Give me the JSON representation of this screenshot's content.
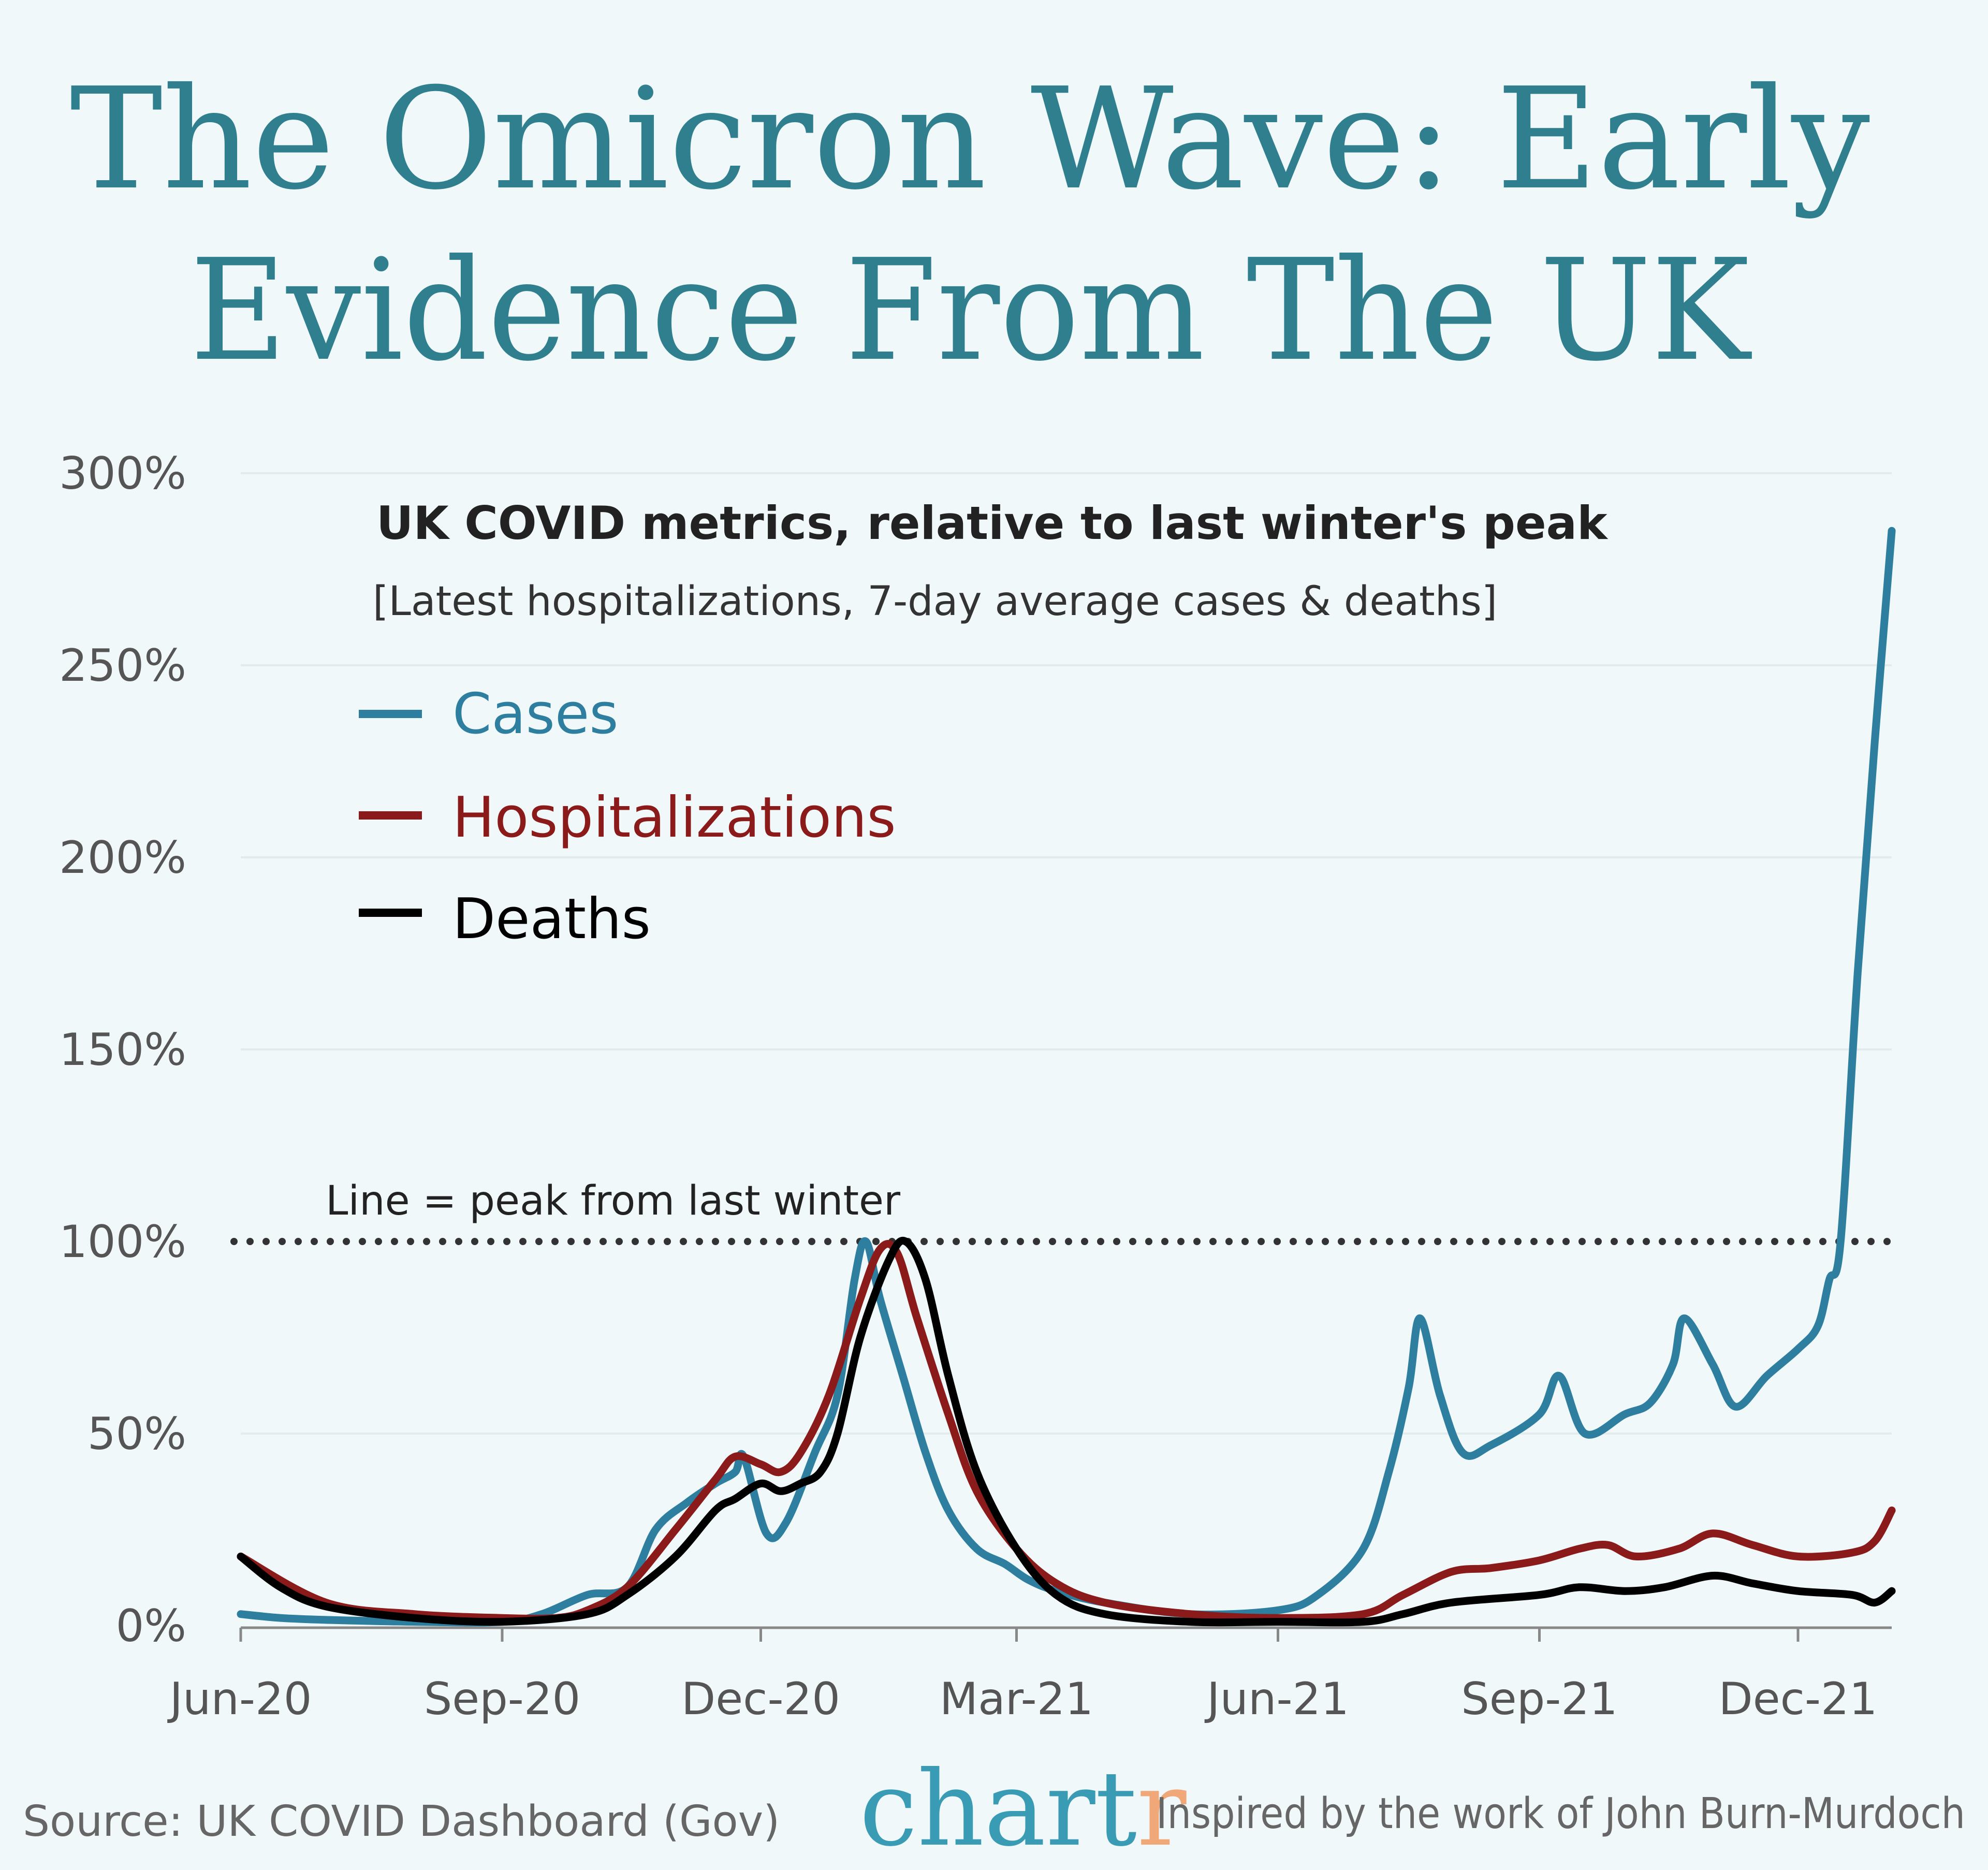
{
  "title_line1": "The Omicron Wave: Early",
  "title_line2": "Evidence From The UK",
  "footer": {
    "source": "Source: UK COVID Dashboard (Gov)",
    "logo": "chartr",
    "credit": "Inspired by the work of John Burn-Murdoch"
  },
  "colors": {
    "background": "#f0f8fa",
    "title": "#2f7f8e",
    "cases": "#2e7ea0",
    "hospitalizations": "#8b1a1a",
    "deaths": "#000000",
    "logo_main": "#3a9bb5",
    "logo_accent": "#f0a878"
  },
  "chart_data": {
    "type": "line",
    "title": "UK COVID metrics, relative to last winter's peak",
    "subtitle": "[Latest hospitalizations, 7-day average cases & deaths]",
    "annotation": "Line = peak from last winter",
    "reference_line": {
      "y": 100,
      "style": "dotted"
    },
    "ylim": [
      0,
      300
    ],
    "xlim": [
      "2020-06-01",
      "2022-01-03"
    ],
    "yticks": [
      "0%",
      "50%",
      "100%",
      "150%",
      "200%",
      "250%",
      "300%"
    ],
    "ytick_values": [
      0,
      50,
      100,
      150,
      200,
      250,
      300
    ],
    "xticks": [
      "Jun-20",
      "Sep-20",
      "Dec-20",
      "Mar-21",
      "Jun-21",
      "Sep-21",
      "Dec-21"
    ],
    "xtick_dates": [
      "2020-06-01",
      "2020-09-01",
      "2020-12-01",
      "2021-03-01",
      "2021-06-01",
      "2021-09-01",
      "2021-12-01"
    ],
    "grid": true,
    "legend_placement": "top-left",
    "series": [
      {
        "name": "Cases",
        "color": "#2e7ea0",
        "points": [
          [
            "2020-06-01",
            3
          ],
          [
            "2020-06-15",
            2
          ],
          [
            "2020-07-01",
            1.5
          ],
          [
            "2020-08-01",
            1
          ],
          [
            "2020-09-01",
            1
          ],
          [
            "2020-09-15",
            3
          ],
          [
            "2020-10-01",
            8
          ],
          [
            "2020-10-15",
            10
          ],
          [
            "2020-10-25",
            25
          ],
          [
            "2020-11-05",
            32
          ],
          [
            "2020-11-15",
            37
          ],
          [
            "2020-11-22",
            40
          ],
          [
            "2020-11-25",
            44
          ],
          [
            "2020-12-03",
            24
          ],
          [
            "2020-12-10",
            27
          ],
          [
            "2020-12-20",
            45
          ],
          [
            "2020-12-28",
            60
          ],
          [
            "2021-01-03",
            90
          ],
          [
            "2021-01-07",
            100
          ],
          [
            "2021-01-12",
            85
          ],
          [
            "2021-01-20",
            65
          ],
          [
            "2021-01-28",
            45
          ],
          [
            "2021-02-05",
            30
          ],
          [
            "2021-02-15",
            20
          ],
          [
            "2021-02-25",
            16
          ],
          [
            "2021-03-05",
            12
          ],
          [
            "2021-03-15",
            9
          ],
          [
            "2021-04-01",
            6
          ],
          [
            "2021-05-01",
            3
          ],
          [
            "2021-06-01",
            4
          ],
          [
            "2021-06-15",
            8
          ],
          [
            "2021-07-01",
            20
          ],
          [
            "2021-07-10",
            40
          ],
          [
            "2021-07-17",
            62
          ],
          [
            "2021-07-21",
            80
          ],
          [
            "2021-07-28",
            60
          ],
          [
            "2021-08-05",
            45
          ],
          [
            "2021-08-15",
            47
          ],
          [
            "2021-09-01",
            55
          ],
          [
            "2021-09-08",
            65
          ],
          [
            "2021-09-17",
            50
          ],
          [
            "2021-10-01",
            55
          ],
          [
            "2021-10-10",
            58
          ],
          [
            "2021-10-18",
            68
          ],
          [
            "2021-10-22",
            80
          ],
          [
            "2021-11-01",
            68
          ],
          [
            "2021-11-09",
            57
          ],
          [
            "2021-11-20",
            65
          ],
          [
            "2021-12-01",
            72
          ],
          [
            "2021-12-08",
            78
          ],
          [
            "2021-12-12",
            90
          ],
          [
            "2021-12-16",
            100
          ],
          [
            "2021-12-22",
            170
          ],
          [
            "2021-12-28",
            230
          ],
          [
            "2022-01-03",
            285
          ]
        ]
      },
      {
        "name": "Hospitalizations",
        "color": "#8b1a1a",
        "points": [
          [
            "2020-06-01",
            18
          ],
          [
            "2020-07-01",
            6
          ],
          [
            "2020-08-01",
            3
          ],
          [
            "2020-09-01",
            2
          ],
          [
            "2020-09-20",
            2
          ],
          [
            "2020-10-01",
            4
          ],
          [
            "2020-10-15",
            10
          ],
          [
            "2020-11-01",
            25
          ],
          [
            "2020-11-15",
            38
          ],
          [
            "2020-11-22",
            44
          ],
          [
            "2020-12-01",
            42
          ],
          [
            "2020-12-08",
            40
          ],
          [
            "2020-12-15",
            45
          ],
          [
            "2020-12-25",
            60
          ],
          [
            "2021-01-05",
            85
          ],
          [
            "2021-01-12",
            98
          ],
          [
            "2021-01-18",
            97
          ],
          [
            "2021-01-25",
            80
          ],
          [
            "2021-02-05",
            55
          ],
          [
            "2021-02-15",
            35
          ],
          [
            "2021-03-01",
            20
          ],
          [
            "2021-03-15",
            11
          ],
          [
            "2021-04-01",
            6
          ],
          [
            "2021-05-01",
            3
          ],
          [
            "2021-06-01",
            2
          ],
          [
            "2021-07-01",
            3
          ],
          [
            "2021-07-15",
            8
          ],
          [
            "2021-08-01",
            14
          ],
          [
            "2021-08-15",
            15
          ],
          [
            "2021-09-01",
            17
          ],
          [
            "2021-09-15",
            20
          ],
          [
            "2021-09-25",
            21
          ],
          [
            "2021-10-05",
            18
          ],
          [
            "2021-10-20",
            20
          ],
          [
            "2021-11-01",
            24
          ],
          [
            "2021-11-15",
            21
          ],
          [
            "2021-12-01",
            18
          ],
          [
            "2021-12-20",
            19
          ],
          [
            "2021-12-28",
            22
          ],
          [
            "2022-01-03",
            30
          ]
        ]
      },
      {
        "name": "Deaths",
        "color": "#000000",
        "points": [
          [
            "2020-06-01",
            18
          ],
          [
            "2020-06-15",
            10
          ],
          [
            "2020-07-01",
            5
          ],
          [
            "2020-08-01",
            2
          ],
          [
            "2020-09-01",
            1
          ],
          [
            "2020-10-01",
            3
          ],
          [
            "2020-10-15",
            8
          ],
          [
            "2020-11-01",
            18
          ],
          [
            "2020-11-15",
            30
          ],
          [
            "2020-11-22",
            33
          ],
          [
            "2020-12-01",
            37
          ],
          [
            "2020-12-08",
            35
          ],
          [
            "2020-12-15",
            37
          ],
          [
            "2020-12-22",
            40
          ],
          [
            "2020-12-28",
            50
          ],
          [
            "2021-01-05",
            75
          ],
          [
            "2021-01-15",
            95
          ],
          [
            "2021-01-21",
            100
          ],
          [
            "2021-01-28",
            90
          ],
          [
            "2021-02-05",
            65
          ],
          [
            "2021-02-15",
            40
          ],
          [
            "2021-03-01",
            20
          ],
          [
            "2021-03-15",
            8
          ],
          [
            "2021-04-01",
            3
          ],
          [
            "2021-05-01",
            1
          ],
          [
            "2021-06-01",
            1
          ],
          [
            "2021-07-01",
            1
          ],
          [
            "2021-07-15",
            3
          ],
          [
            "2021-08-01",
            6
          ],
          [
            "2021-09-01",
            8
          ],
          [
            "2021-09-15",
            10
          ],
          [
            "2021-10-01",
            9
          ],
          [
            "2021-10-15",
            10
          ],
          [
            "2021-11-01",
            13
          ],
          [
            "2021-11-15",
            11
          ],
          [
            "2021-12-01",
            9
          ],
          [
            "2021-12-20",
            8
          ],
          [
            "2021-12-28",
            6
          ],
          [
            "2022-01-03",
            9
          ]
        ]
      }
    ]
  }
}
